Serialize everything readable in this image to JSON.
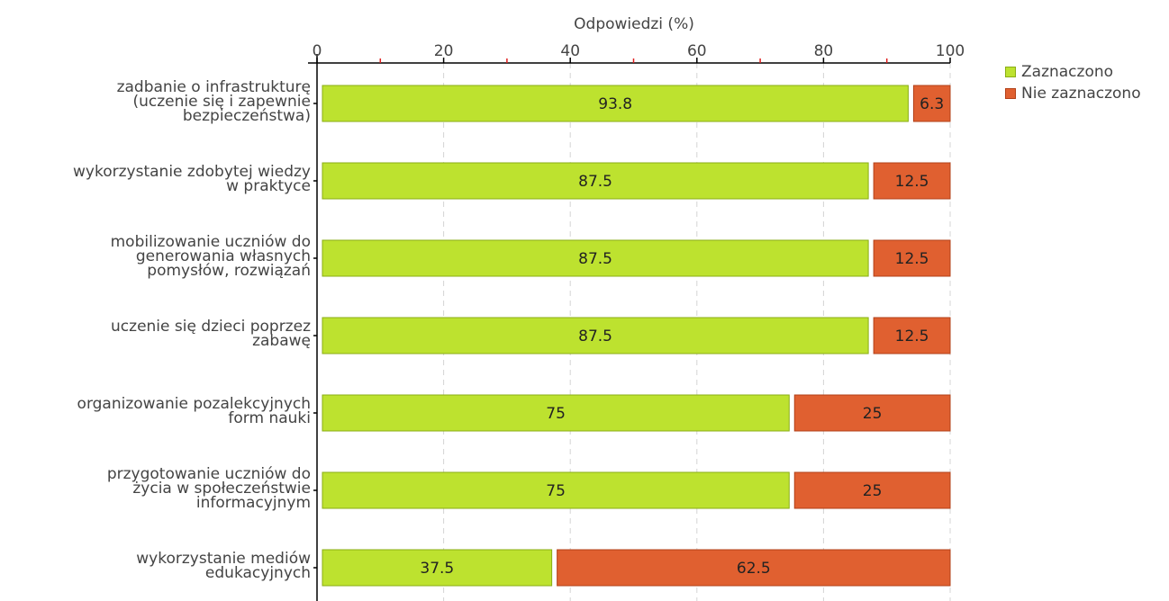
{
  "chart_data": {
    "type": "bar",
    "orientation": "horizontal",
    "stacked": true,
    "categories": [
      "zadbanie o infrastrukturę\n(uczenie się i zapewnie\nbezpieczeństwa)",
      "wykorzystanie zdobytej wiedzy\nw praktyce",
      "mobilizowanie uczniów do\ngenerowania własnych\npomysłów, rozwiązań",
      "uczenie się dzieci poprzez\nzabawę",
      "organizowanie pozalekcyjnych\nform nauki",
      "przygotowanie uczniów do\nżycia w społeczeństwie\ninformacyjnym",
      "wykorzystanie mediów\nedukacyjnych"
    ],
    "series": [
      {
        "name": "Zaznaczono",
        "values": [
          93.8,
          87.5,
          87.5,
          87.5,
          75,
          75,
          37.5
        ],
        "color": "#bde22f",
        "border": "#8aad16"
      },
      {
        "name": "Nie zaznaczono",
        "values": [
          6.3,
          12.5,
          12.5,
          12.5,
          25,
          25,
          62.5
        ],
        "color": "#e06030",
        "border": "#b24018"
      }
    ],
    "xlabel": "Odpowiedzi (%)",
    "xlim": [
      0,
      100
    ],
    "xticks": [
      "0",
      "20",
      "40",
      "60",
      "80",
      "100"
    ],
    "grid": true,
    "legend": "top-right"
  }
}
